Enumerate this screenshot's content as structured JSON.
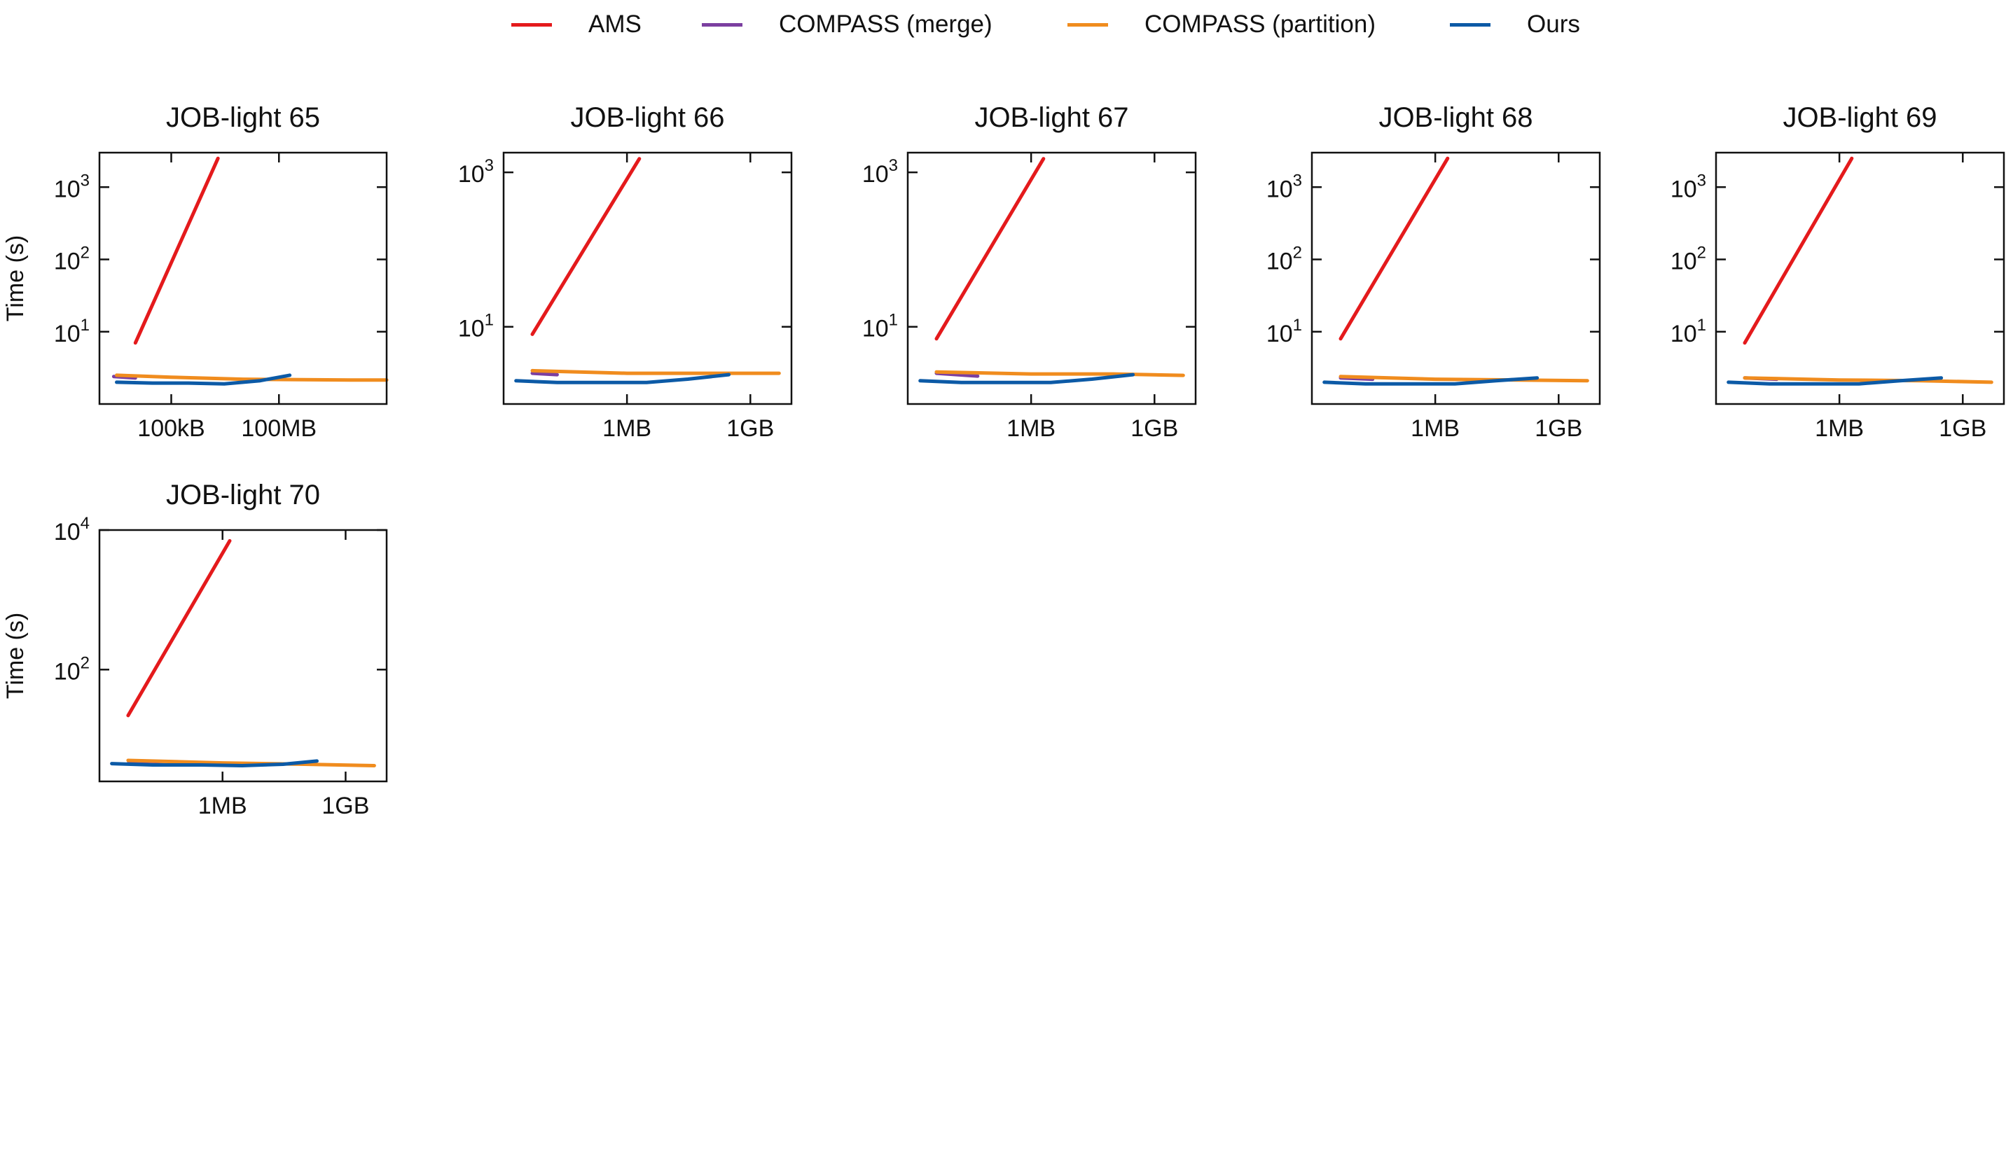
{
  "chart_data": [
    {
      "type": "line",
      "title": "JOB-light 65",
      "ylabel": "Time (s)",
      "xlabel": "",
      "x_scale": "log",
      "y_scale": "log",
      "xlim": [
        1000,
        100000000000
      ],
      "ylim": [
        1,
        3000
      ],
      "x_ticks": [
        {
          "value": 100000,
          "label": "100kB"
        },
        {
          "value": 100000000,
          "label": "100MB"
        }
      ],
      "y_ticks": [
        {
          "value": 10,
          "base": "10",
          "exp": "1"
        },
        {
          "value": 100,
          "base": "10",
          "exp": "2"
        },
        {
          "value": 1000,
          "base": "10",
          "exp": "3"
        }
      ],
      "grid": false,
      "legend_position": "top-center",
      "series": [
        {
          "name": "AMS",
          "color": "#e41a1c",
          "x": [
            10000,
            2000000
          ],
          "y": [
            7,
            2500
          ]
        },
        {
          "name": "COMPASS (merge)",
          "color": "#7b3fa0",
          "x": [
            2500,
            10000
          ],
          "y": [
            2.4,
            2.3
          ]
        },
        {
          "name": "COMPASS (partition)",
          "color": "#f08c1e",
          "x": [
            3000,
            100000,
            10000000,
            10000000000,
            100000000000
          ],
          "y": [
            2.5,
            2.35,
            2.2,
            2.15,
            2.15
          ]
        },
        {
          "name": "Ours",
          "color": "#0c5aa6",
          "x": [
            3000,
            30000,
            300000,
            3000000,
            30000000,
            200000000
          ],
          "y": [
            2.0,
            1.95,
            1.95,
            1.9,
            2.1,
            2.5
          ]
        }
      ]
    },
    {
      "type": "line",
      "title": "JOB-light 66",
      "ylabel": "",
      "xlabel": "",
      "x_scale": "log",
      "y_scale": "log",
      "xlim": [
        1000,
        10000000000
      ],
      "ylim": [
        1,
        1800
      ],
      "x_ticks": [
        {
          "value": 1000000,
          "label": "1MB"
        },
        {
          "value": 1000000000,
          "label": "1GB"
        }
      ],
      "y_ticks": [
        {
          "value": 10,
          "base": "10",
          "exp": "1"
        },
        {
          "value": 1000,
          "base": "10",
          "exp": "3"
        }
      ],
      "grid": false,
      "legend_position": "top-center",
      "series": [
        {
          "name": "AMS",
          "color": "#e41a1c",
          "x": [
            5000,
            2000000
          ],
          "y": [
            8,
            1500
          ]
        },
        {
          "name": "COMPASS (merge)",
          "color": "#7b3fa0",
          "x": [
            5000,
            20000
          ],
          "y": [
            2.5,
            2.4
          ]
        },
        {
          "name": "COMPASS (partition)",
          "color": "#f08c1e",
          "x": [
            5000,
            1000000,
            100000000,
            5000000000
          ],
          "y": [
            2.7,
            2.5,
            2.5,
            2.5
          ]
        },
        {
          "name": "Ours",
          "color": "#0c5aa6",
          "x": [
            2000,
            20000,
            300000,
            3000000,
            30000000,
            300000000
          ],
          "y": [
            2.0,
            1.9,
            1.9,
            1.9,
            2.1,
            2.4
          ]
        }
      ]
    },
    {
      "type": "line",
      "title": "JOB-light 67",
      "ylabel": "",
      "xlabel": "",
      "x_scale": "log",
      "y_scale": "log",
      "xlim": [
        1000,
        10000000000
      ],
      "ylim": [
        1,
        1800
      ],
      "x_ticks": [
        {
          "value": 1000000,
          "label": "1MB"
        },
        {
          "value": 1000000000,
          "label": "1GB"
        }
      ],
      "y_ticks": [
        {
          "value": 10,
          "base": "10",
          "exp": "1"
        },
        {
          "value": 1000,
          "base": "10",
          "exp": "3"
        }
      ],
      "grid": false,
      "legend_position": "top-center",
      "series": [
        {
          "name": "AMS",
          "color": "#e41a1c",
          "x": [
            5000,
            2000000
          ],
          "y": [
            7,
            1500
          ]
        },
        {
          "name": "COMPASS (merge)",
          "color": "#7b3fa0",
          "x": [
            5000,
            50000
          ],
          "y": [
            2.5,
            2.3
          ]
        },
        {
          "name": "COMPASS (partition)",
          "color": "#f08c1e",
          "x": [
            5000,
            1000000,
            100000000,
            5000000000
          ],
          "y": [
            2.6,
            2.45,
            2.45,
            2.35
          ]
        },
        {
          "name": "Ours",
          "color": "#0c5aa6",
          "x": [
            2000,
            20000,
            300000,
            3000000,
            30000000,
            300000000
          ],
          "y": [
            2.0,
            1.9,
            1.9,
            1.9,
            2.1,
            2.4
          ]
        }
      ]
    },
    {
      "type": "line",
      "title": "JOB-light 68",
      "ylabel": "",
      "xlabel": "",
      "x_scale": "log",
      "y_scale": "log",
      "xlim": [
        1000,
        10000000000
      ],
      "ylim": [
        1,
        3000
      ],
      "x_ticks": [
        {
          "value": 1000000,
          "label": "1MB"
        },
        {
          "value": 1000000000,
          "label": "1GB"
        }
      ],
      "y_ticks": [
        {
          "value": 10,
          "base": "10",
          "exp": "1"
        },
        {
          "value": 100,
          "base": "10",
          "exp": "2"
        },
        {
          "value": 1000,
          "base": "10",
          "exp": "3"
        }
      ],
      "grid": false,
      "legend_position": "top-center",
      "series": [
        {
          "name": "AMS",
          "color": "#e41a1c",
          "x": [
            5000,
            2000000
          ],
          "y": [
            8,
            2500
          ]
        },
        {
          "name": "COMPASS (merge)",
          "color": "#7b3fa0",
          "x": [
            5000,
            30000
          ],
          "y": [
            2.3,
            2.2
          ]
        },
        {
          "name": "COMPASS (partition)",
          "color": "#f08c1e",
          "x": [
            5000,
            1000000,
            100000000,
            5000000000
          ],
          "y": [
            2.4,
            2.2,
            2.15,
            2.1
          ]
        },
        {
          "name": "Ours",
          "color": "#0c5aa6",
          "x": [
            2000,
            20000,
            300000,
            3000000,
            30000000,
            300000000
          ],
          "y": [
            2.0,
            1.9,
            1.9,
            1.9,
            2.1,
            2.3
          ]
        }
      ]
    },
    {
      "type": "line",
      "title": "JOB-light 69",
      "ylabel": "",
      "xlabel": "",
      "x_scale": "log",
      "y_scale": "log",
      "xlim": [
        1000,
        10000000000
      ],
      "ylim": [
        1,
        3000
      ],
      "x_ticks": [
        {
          "value": 1000000,
          "label": "1MB"
        },
        {
          "value": 1000000000,
          "label": "1GB"
        }
      ],
      "y_ticks": [
        {
          "value": 10,
          "base": "10",
          "exp": "1"
        },
        {
          "value": 100,
          "base": "10",
          "exp": "2"
        },
        {
          "value": 1000,
          "base": "10",
          "exp": "3"
        }
      ],
      "grid": false,
      "legend_position": "top-center",
      "series": [
        {
          "name": "AMS",
          "color": "#e41a1c",
          "x": [
            5000,
            2000000
          ],
          "y": [
            7,
            2500
          ]
        },
        {
          "name": "COMPASS (merge)",
          "color": "#7b3fa0",
          "x": [
            5000,
            30000
          ],
          "y": [
            2.3,
            2.2
          ]
        },
        {
          "name": "COMPASS (partition)",
          "color": "#f08c1e",
          "x": [
            5000,
            1000000,
            100000000,
            5000000000
          ],
          "y": [
            2.3,
            2.15,
            2.1,
            2.0
          ]
        },
        {
          "name": "Ours",
          "color": "#0c5aa6",
          "x": [
            2000,
            20000,
            300000,
            3000000,
            30000000,
            300000000
          ],
          "y": [
            2.0,
            1.9,
            1.9,
            1.9,
            2.1,
            2.3
          ]
        }
      ]
    },
    {
      "type": "line",
      "title": "JOB-light 70",
      "ylabel": "Time (s)",
      "xlabel": "",
      "x_scale": "log",
      "y_scale": "log",
      "xlim": [
        1000,
        10000000000
      ],
      "ylim": [
        2.5,
        10000
      ],
      "x_ticks": [
        {
          "value": 1000000,
          "label": "1MB"
        },
        {
          "value": 1000000000,
          "label": "1GB"
        }
      ],
      "y_ticks": [
        {
          "value": 100,
          "base": "10",
          "exp": "2"
        },
        {
          "value": 10000,
          "base": "10",
          "exp": "4"
        }
      ],
      "grid": false,
      "legend_position": "top-center",
      "series": [
        {
          "name": "AMS",
          "color": "#e41a1c",
          "x": [
            5000,
            1500000
          ],
          "y": [
            22,
            7000
          ]
        },
        {
          "name": "COMPASS (merge)",
          "color": "#7b3fa0",
          "x": [
            5000,
            50000
          ],
          "y": [
            4.5,
            4.3
          ]
        },
        {
          "name": "COMPASS (partition)",
          "color": "#f08c1e",
          "x": [
            5000,
            1000000,
            100000000,
            5000000000
          ],
          "y": [
            5.0,
            4.6,
            4.4,
            4.2
          ]
        },
        {
          "name": "Ours",
          "color": "#0c5aa6",
          "x": [
            2000,
            20000,
            300000,
            3000000,
            30000000,
            200000000
          ],
          "y": [
            4.5,
            4.3,
            4.3,
            4.2,
            4.4,
            4.9
          ]
        }
      ]
    }
  ]
}
